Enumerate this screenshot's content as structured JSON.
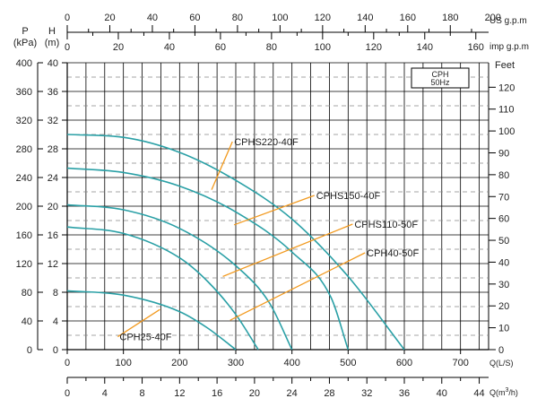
{
  "chart_data": {
    "type": "line",
    "title": "",
    "box_label": {
      "line1": "CPH",
      "line2": "50Hz"
    },
    "axes": {
      "pressure": {
        "label_top": "P",
        "label_unit": "(kPa)",
        "min": 0,
        "max": 400,
        "ticks": [
          0,
          40,
          80,
          120,
          160,
          200,
          240,
          280,
          320,
          360,
          400
        ]
      },
      "head_m": {
        "label_top": "H",
        "label_unit": "(m)",
        "min": 0,
        "max": 40,
        "ticks": [
          0,
          4,
          8,
          12,
          16,
          20,
          24,
          28,
          32,
          36,
          40
        ]
      },
      "head_ft": {
        "label": "Feet",
        "min": 0,
        "max": 131.2,
        "ticks": [
          0,
          10,
          20,
          30,
          40,
          50,
          60,
          70,
          80,
          90,
          100,
          110,
          120
        ]
      },
      "flow_lps": {
        "label": "Q(L/S)",
        "min": 0,
        "max": 750,
        "ticks": [
          0,
          100,
          200,
          300,
          400,
          500,
          600,
          700
        ]
      },
      "flow_m3h": {
        "label_prefix": "Q(m",
        "label_sup": "3",
        "label_suffix": "/h)",
        "min": 0,
        "max": 45,
        "ticks": [
          0,
          4,
          8,
          12,
          16,
          20,
          24,
          28,
          32,
          36,
          40,
          44
        ]
      },
      "flow_usgpm": {
        "label": "US g.p.m",
        "min": 0,
        "max": 198,
        "ticks": [
          0,
          20,
          40,
          60,
          80,
          100,
          120,
          140,
          160,
          180,
          200
        ]
      },
      "flow_impgpm": {
        "label": "imp g.p.m",
        "min": 0,
        "max": 165,
        "ticks": [
          0,
          20,
          40,
          60,
          80,
          100,
          120,
          140,
          160
        ]
      }
    },
    "grid": true,
    "x_unit": "Q (L/S scale)",
    "y_unit": "H (m)",
    "series": [
      {
        "name": "CPHS220-40F",
        "points": [
          [
            0,
            30
          ],
          [
            100,
            29.6
          ],
          [
            200,
            27.5
          ],
          [
            300,
            23.6
          ],
          [
            400,
            18.2
          ],
          [
            500,
            10.2
          ],
          [
            600,
            0
          ]
        ]
      },
      {
        "name": "CPHS150-40F",
        "points": [
          [
            0,
            25.3
          ],
          [
            100,
            24.7
          ],
          [
            200,
            22.8
          ],
          [
            300,
            19.2
          ],
          [
            400,
            13.6
          ],
          [
            470,
            7.2
          ],
          [
            500,
            0
          ]
        ]
      },
      {
        "name": "CPHS110-50F",
        "points": [
          [
            0,
            20.2
          ],
          [
            100,
            19.5
          ],
          [
            200,
            16.9
          ],
          [
            300,
            11.7
          ],
          [
            360,
            6.5
          ],
          [
            400,
            0
          ]
        ]
      },
      {
        "name": "CPH40-50F",
        "points": [
          [
            0,
            17.1
          ],
          [
            100,
            16.2
          ],
          [
            200,
            12.8
          ],
          [
            250,
            9.5
          ],
          [
            300,
            4.9
          ],
          [
            340,
            0
          ]
        ]
      },
      {
        "name": "CPH25-40F",
        "points": [
          [
            0,
            8.2
          ],
          [
            100,
            7.6
          ],
          [
            200,
            5.3
          ],
          [
            250,
            3.0
          ],
          [
            300,
            0
          ]
        ]
      }
    ],
    "annotations": [
      {
        "text": "CPHS220-40F",
        "target": [
          257,
          22.3
        ],
        "label_at": [
          294,
          29
        ]
      },
      {
        "text": "CPHS150-40F",
        "target": [
          297,
          17.4
        ],
        "label_at": [
          440,
          21.5
        ]
      },
      {
        "text": "CPHS110-50F",
        "target": [
          277,
          10.2
        ],
        "label_at": [
          508,
          17.5
        ]
      },
      {
        "text": "CPH40-50F",
        "target": [
          290,
          4.1
        ],
        "label_at": [
          530,
          13.5
        ]
      },
      {
        "text": "CPH25-40F",
        "target": [
          165,
          5.6
        ],
        "label_at": [
          90,
          1.8
        ]
      }
    ],
    "colors": {
      "curve": "#2aa0a6",
      "leader": "#f29a1f",
      "grid_major": "#000000",
      "grid_dash": "#888888"
    }
  }
}
